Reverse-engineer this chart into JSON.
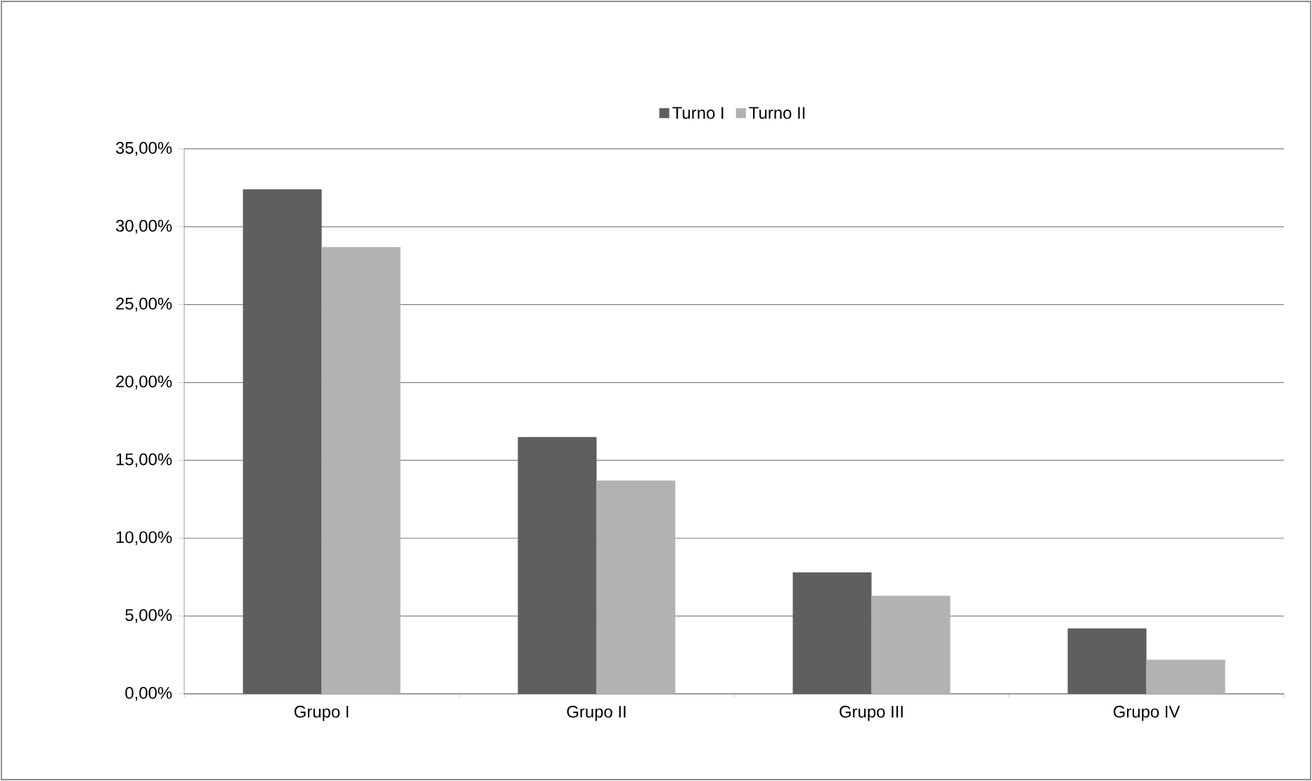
{
  "chart_data": {
    "type": "bar",
    "categories": [
      "Grupo I",
      "Grupo II",
      "Grupo III",
      "Grupo IV"
    ],
    "series": [
      {
        "name": "Turno I",
        "color": "#5f5f5f",
        "values": [
          32.4,
          16.5,
          7.8,
          4.2
        ]
      },
      {
        "name": "Turno II",
        "color": "#b2b2b2",
        "values": [
          28.7,
          13.7,
          6.3,
          2.2
        ]
      }
    ],
    "ylim": [
      0,
      35
    ],
    "yticks": [
      {
        "value": 0,
        "label": "0,00%"
      },
      {
        "value": 5,
        "label": "5,00%"
      },
      {
        "value": 10,
        "label": "10,00%"
      },
      {
        "value": 15,
        "label": "15,00%"
      },
      {
        "value": 20,
        "label": "20,00%"
      },
      {
        "value": 25,
        "label": "25,00%"
      },
      {
        "value": 30,
        "label": "30,00%"
      },
      {
        "value": 35,
        "label": "35,00%"
      }
    ],
    "grid": "y",
    "legend": "top"
  }
}
